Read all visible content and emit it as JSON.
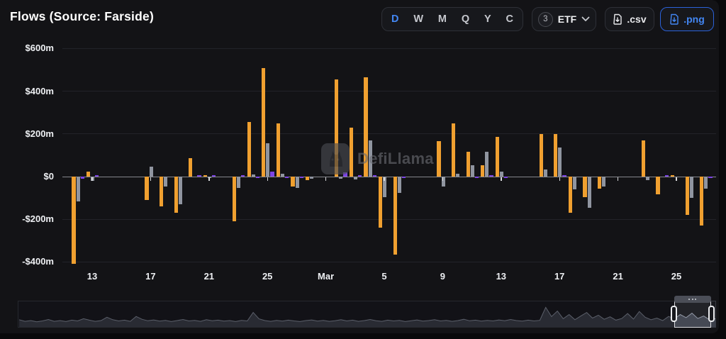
{
  "header": {
    "title": "Flows (Source: Farside)",
    "time_buttons": [
      "D",
      "W",
      "M",
      "Q",
      "Y",
      "C"
    ],
    "active_time": "D",
    "etf_selector": {
      "count": "3",
      "label": "ETF"
    },
    "csv_label": ".csv",
    "png_label": ".png"
  },
  "watermark": {
    "text": "DefiLlama"
  },
  "colors": {
    "background": "#131316",
    "page": "#09090b",
    "accent_blue": "#4387f4",
    "bar_orange": "#f0a030",
    "bar_gray": "#9095a0",
    "bar_purple": "#7d45e6",
    "zero_line": "#85868c",
    "gridline": "#222329"
  },
  "chart_data": {
    "type": "bar",
    "title": "Flows (Source: Farside)",
    "unit": "$m",
    "grid": true,
    "legend_position": "none",
    "ylim": [
      -468,
      628
    ],
    "yticks": [
      {
        "label": "$600m",
        "value": 600
      },
      {
        "label": "$400m",
        "value": 400
      },
      {
        "label": "$200m",
        "value": 200
      },
      {
        "label": "$0",
        "value": 0
      },
      {
        "label": "-$200m",
        "value": -200
      },
      {
        "label": "-$400m",
        "value": -400
      }
    ],
    "num_days": 45,
    "x_ticks": [
      {
        "i": 2,
        "label": "13"
      },
      {
        "i": 6,
        "label": "17"
      },
      {
        "i": 10,
        "label": "21"
      },
      {
        "i": 14,
        "label": "25"
      },
      {
        "i": 18,
        "label": "Mar"
      },
      {
        "i": 22,
        "label": "5"
      },
      {
        "i": 26,
        "label": "9"
      },
      {
        "i": 30,
        "label": "13"
      },
      {
        "i": 34,
        "label": "17"
      },
      {
        "i": 38,
        "label": "21"
      },
      {
        "i": 42,
        "label": "25"
      }
    ],
    "series": [
      {
        "name": "orange",
        "color": "#f0a030",
        "values": [
          0,
          -410,
          22,
          0,
          0,
          0,
          -110,
          -140,
          -170,
          88,
          5,
          0,
          -210,
          255,
          510,
          250,
          -45,
          -15,
          0,
          455,
          230,
          465,
          -240,
          -365,
          0,
          0,
          165,
          250,
          115,
          52,
          185,
          0,
          0,
          198,
          200,
          -170,
          -95,
          -55,
          0,
          0,
          170,
          -82,
          8,
          -178,
          -230
        ]
      },
      {
        "name": "gray",
        "color": "#9095a0",
        "values": [
          0,
          -115,
          -20,
          0,
          0,
          0,
          48,
          -48,
          -130,
          0,
          -5,
          0,
          -52,
          10,
          155,
          12,
          -52,
          -10,
          0,
          -10,
          -12,
          168,
          -95,
          -75,
          0,
          0,
          -45,
          15,
          53,
          115,
          25,
          0,
          0,
          35,
          138,
          -60,
          -145,
          -48,
          0,
          0,
          -15,
          0,
          0,
          -98,
          -55
        ]
      },
      {
        "name": "purple",
        "color": "#7d45e6",
        "values": [
          0,
          -10,
          5,
          0,
          0,
          0,
          0,
          0,
          0,
          8,
          3,
          0,
          8,
          -5,
          22,
          -8,
          -5,
          0,
          0,
          20,
          5,
          5,
          0,
          -8,
          0,
          0,
          0,
          0,
          -5,
          5,
          -5,
          0,
          0,
          0,
          8,
          0,
          0,
          0,
          0,
          0,
          0,
          8,
          0,
          0,
          -8
        ]
      }
    ],
    "navigator": {
      "selection_start": 0.94,
      "selection_end": 0.993,
      "values": [
        0.3,
        0.22,
        0.26,
        0.2,
        0.24,
        0.31,
        0.22,
        0.26,
        0.21,
        0.28,
        0.24,
        0.35,
        0.28,
        0.22,
        0.26,
        0.42,
        0.3,
        0.24,
        0.28,
        0.22,
        0.46,
        0.32,
        0.25,
        0.29,
        0.23,
        0.27,
        0.21,
        0.26,
        0.31,
        0.24,
        0.27,
        0.22,
        0.3,
        0.25,
        0.28,
        0.23,
        0.26,
        0.21,
        0.27,
        0.24,
        0.65,
        0.34,
        0.26,
        0.22,
        0.27,
        0.23,
        0.28,
        0.24,
        0.21,
        0.26,
        0.29,
        0.23,
        0.27,
        0.22,
        0.25,
        0.3,
        0.24,
        0.28,
        0.22,
        0.26,
        0.31,
        0.25,
        0.22,
        0.28,
        0.24,
        0.27,
        0.21,
        0.25,
        0.29,
        0.23,
        0.26,
        0.3,
        0.24,
        0.27,
        0.22,
        0.26,
        0.32,
        0.25,
        0.28,
        0.23,
        0.27,
        0.24,
        0.29,
        0.25,
        0.31,
        0.26,
        0.23,
        0.28,
        0.24,
        0.27,
        0.9,
        0.45,
        0.72,
        0.35,
        0.55,
        0.3,
        0.48,
        0.65,
        0.38,
        0.52,
        0.32,
        0.44,
        0.28,
        0.36,
        0.6,
        0.33,
        0.7,
        0.42,
        0.3,
        0.38,
        0.26,
        0.46,
        0.34,
        0.55,
        0.4,
        0.62,
        0.36,
        0.48,
        0.3,
        0.35
      ]
    }
  }
}
